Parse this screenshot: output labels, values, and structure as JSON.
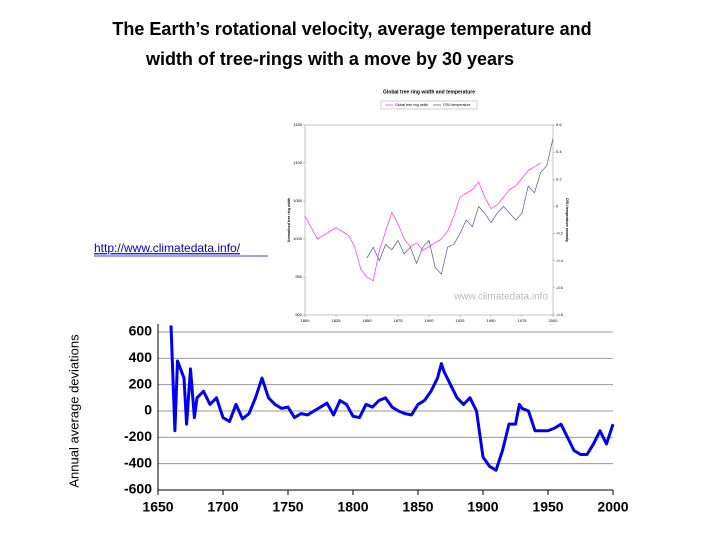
{
  "title": [
    "The Earth’s rotational velocity, average temperature and",
    "width of tree-rings with a move by 30 years"
  ],
  "link": "http://www.climatedata.info/",
  "chart_data": [
    {
      "type": "line",
      "title": "Global tree ring width and temperature",
      "ylabel": "Normalised tree ring width",
      "y2label": "CRU temperature anomaly",
      "annotation": "www.climatedata.info",
      "x": [
        1800,
        1805,
        1810,
        1815,
        1820,
        1825,
        1830,
        1835,
        1840,
        1845,
        1850,
        1855,
        1860,
        1865,
        1870,
        1875,
        1880,
        1885,
        1890,
        1895,
        1900,
        1905,
        1910,
        1915,
        1920,
        1925,
        1930,
        1935,
        1940,
        1945,
        1950,
        1955,
        1960,
        1965,
        1970,
        1975,
        1980,
        1985,
        1990,
        1995,
        2000
      ],
      "series": [
        {
          "name": "Global tree ring width",
          "color": "#ff44ff",
          "axis": "y",
          "values": [
            1030,
            1015,
            1000,
            1005,
            1010,
            1015,
            1010,
            1005,
            990,
            960,
            950,
            945,
            985,
            1010,
            1035,
            1020,
            1000,
            990,
            995,
            985,
            990,
            995,
            1000,
            1010,
            1030,
            1055,
            1060,
            1065,
            1075,
            1055,
            1040,
            1045,
            1055,
            1065,
            1070,
            1080,
            1090,
            1095,
            1100,
            null,
            null
          ]
        },
        {
          "name": "CRU temperature",
          "color": "#6666aa",
          "axis": "y2",
          "values": [
            null,
            null,
            null,
            null,
            null,
            null,
            null,
            null,
            null,
            null,
            -0.38,
            -0.3,
            -0.4,
            -0.28,
            -0.32,
            -0.25,
            -0.35,
            -0.3,
            -0.42,
            -0.3,
            -0.25,
            -0.45,
            -0.5,
            -0.3,
            -0.28,
            -0.2,
            -0.1,
            -0.15,
            0,
            -0.05,
            -0.12,
            -0.05,
            0,
            -0.05,
            -0.1,
            -0.05,
            0.15,
            0.1,
            0.25,
            0.3,
            0.5
          ]
        }
      ],
      "xlim": [
        1800,
        2000
      ],
      "xticks": [
        1800,
        1825,
        1850,
        1875,
        1900,
        1925,
        1950,
        1975,
        2000
      ],
      "ylim": [
        900,
        1150
      ],
      "yticks": [
        900,
        950,
        1000,
        1050,
        1100,
        1150
      ],
      "y2lim": [
        -0.8,
        0.6
      ],
      "y2ticks": [
        -0.8,
        -0.6,
        -0.4,
        -0.2,
        0,
        0.2,
        0.4,
        0.6
      ],
      "grid": false,
      "legend": "top"
    },
    {
      "type": "line",
      "ylabel": "Annual average deviations",
      "x": [
        1660,
        1663,
        1665,
        1670,
        1672,
        1675,
        1678,
        1680,
        1685,
        1690,
        1695,
        1700,
        1705,
        1710,
        1715,
        1720,
        1725,
        1730,
        1735,
        1740,
        1745,
        1750,
        1755,
        1760,
        1765,
        1770,
        1775,
        1780,
        1785,
        1790,
        1795,
        1800,
        1805,
        1810,
        1815,
        1820,
        1825,
        1830,
        1835,
        1840,
        1845,
        1850,
        1855,
        1860,
        1865,
        1868,
        1870,
        1875,
        1880,
        1885,
        1890,
        1895,
        1900,
        1905,
        1910,
        1915,
        1920,
        1925,
        1928,
        1930,
        1935,
        1940,
        1945,
        1950,
        1955,
        1960,
        1965,
        1970,
        1975,
        1980,
        1985,
        1990,
        1995,
        2000
      ],
      "series": [
        {
          "name": null,
          "color": "#0000ee",
          "values": [
            650,
            -150,
            380,
            250,
            -100,
            320,
            -50,
            100,
            150,
            50,
            100,
            -50,
            -80,
            50,
            -60,
            -20,
            100,
            250,
            100,
            50,
            20,
            30,
            -50,
            -20,
            -30,
            0,
            30,
            60,
            -30,
            80,
            50,
            -40,
            -50,
            50,
            30,
            80,
            100,
            30,
            0,
            -20,
            -30,
            50,
            80,
            150,
            250,
            360,
            300,
            200,
            100,
            50,
            100,
            0,
            -350,
            -420,
            -450,
            -300,
            -100,
            -100,
            50,
            20,
            0,
            -150,
            -150,
            -150,
            -130,
            -100,
            -200,
            -300,
            -330,
            -330,
            -250,
            -150,
            -250,
            -100
          ]
        }
      ],
      "xlim": [
        1650,
        2000
      ],
      "xticks": [
        1650,
        1700,
        1750,
        1800,
        1850,
        1900,
        1950,
        2000
      ],
      "ylim": [
        -600,
        600
      ],
      "yticks": [
        -600,
        -400,
        -200,
        0,
        200,
        400,
        600
      ],
      "grid": true
    }
  ]
}
